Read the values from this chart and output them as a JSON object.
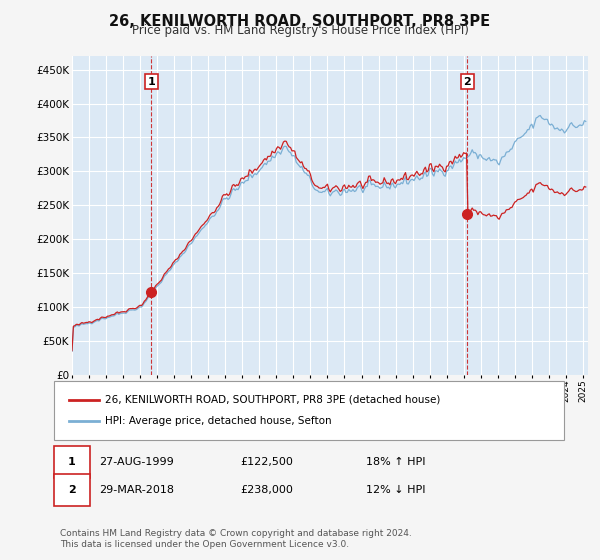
{
  "title": "26, KENILWORTH ROAD, SOUTHPORT, PR8 3PE",
  "subtitle": "Price paid vs. HM Land Registry's House Price Index (HPI)",
  "legend_line1": "26, KENILWORTH ROAD, SOUTHPORT, PR8 3PE (detached house)",
  "legend_line2": "HPI: Average price, detached house, Sefton",
  "footnote": "Contains HM Land Registry data © Crown copyright and database right 2024.\nThis data is licensed under the Open Government Licence v3.0.",
  "transaction1_label": "1",
  "transaction1_date": "27-AUG-1999",
  "transaction1_price": "£122,500",
  "transaction1_hpi": "18% ↑ HPI",
  "transaction2_label": "2",
  "transaction2_date": "29-MAR-2018",
  "transaction2_price": "£238,000",
  "transaction2_hpi": "12% ↓ HPI",
  "t1_year": 1999.65,
  "t1_price": 122500,
  "t2_year": 2018.21,
  "t2_price": 238000,
  "ylim_low": 0,
  "ylim_high": 470000,
  "yticks": [
    0,
    50000,
    100000,
    150000,
    200000,
    250000,
    300000,
    350000,
    400000,
    450000
  ],
  "hpi_color": "#7bafd4",
  "price_color": "#cc2222",
  "vline_color": "#cc2222",
  "grid_color": "#cccccc",
  "plot_bg_color": "#dce9f5",
  "background_color": "#f5f5f5"
}
